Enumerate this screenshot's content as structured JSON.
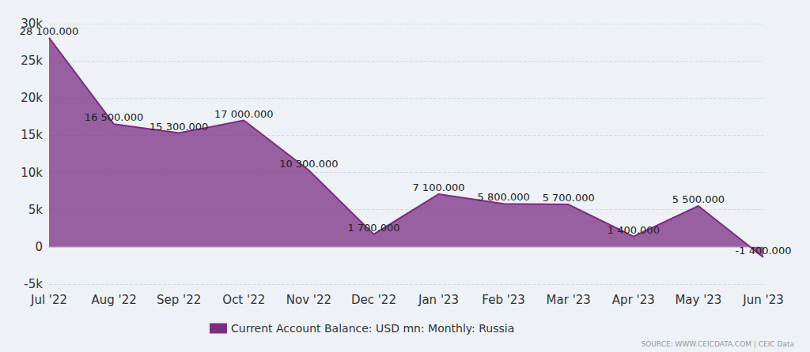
{
  "chart_data": {
    "type": "area",
    "categories": [
      "Jul '22",
      "Aug '22",
      "Sep '22",
      "Oct '22",
      "Nov '22",
      "Dec '22",
      "Jan '23",
      "Feb '23",
      "Mar '23",
      "Apr '23",
      "May '23",
      "Jun '23"
    ],
    "series": [
      {
        "name": "Current Account Balance: USD mn: Monthly: Russia",
        "color": "#7b2d84",
        "values": [
          28100,
          16500,
          15300,
          17000,
          10300,
          1700,
          7100,
          5800,
          5700,
          1400,
          5500,
          -1400
        ],
        "value_labels": [
          "28 100.000",
          "16 500.000",
          "15 300.000",
          "17 000.000",
          "10 300.000",
          "1 700.000",
          "7 100.000",
          "5 800.000",
          "5 700.000",
          "1 400.000",
          "5 500.000",
          "-1 400.000"
        ]
      }
    ],
    "ylim": [
      -5000,
      30000
    ],
    "yticks": [
      {
        "value": -5000,
        "label": "-5k"
      },
      0,
      {
        "value": 5000,
        "label": "5k"
      },
      {
        "value": 10000,
        "label": "10k"
      },
      {
        "value": 15000,
        "label": "15k"
      },
      {
        "value": 20000,
        "label": "20k"
      },
      {
        "value": 25000,
        "label": "25k"
      },
      {
        "value": 30000,
        "label": "30k"
      }
    ],
    "grid": true,
    "legend": "bottom",
    "data_labels": true,
    "source": "SOURCE: WWW.CEICDATA.COM | CEIC Data"
  }
}
